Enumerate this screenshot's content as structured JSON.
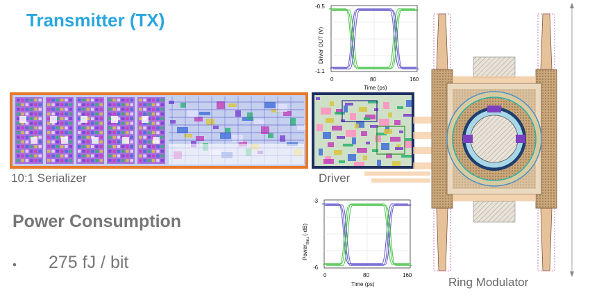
{
  "title": "Transmitter (TX)",
  "captions": {
    "serializer": "10:1 Serializer",
    "driver": "Driver",
    "ring_modulator": "Ring Modulator"
  },
  "power": {
    "heading": "Power Consumption",
    "bullet": "275 fJ / bit"
  },
  "plots": {
    "driver_out": {
      "ylabel": "Driver OUT (V)",
      "xlabel": "Time (ps)",
      "y_ticks": [
        "-0.5",
        "-1.1"
      ],
      "x_ticks": [
        "0",
        "80",
        "160"
      ]
    },
    "power_eye": {
      "ylabel": "Power",
      "ylabel_sub": "thru",
      "ylabel_unit": " (-dB)",
      "xlabel": "Time (ps)",
      "y_ticks": [
        "-3",
        "-6"
      ],
      "x_ticks": [
        "0",
        "80",
        "160"
      ]
    }
  },
  "colors": {
    "title": "#2aa6df",
    "serializer_border": "#e8792a",
    "driver_border": "#1e2f5f",
    "eye_green": "#3fbf3f",
    "eye_purple": "#5a4fc8"
  }
}
